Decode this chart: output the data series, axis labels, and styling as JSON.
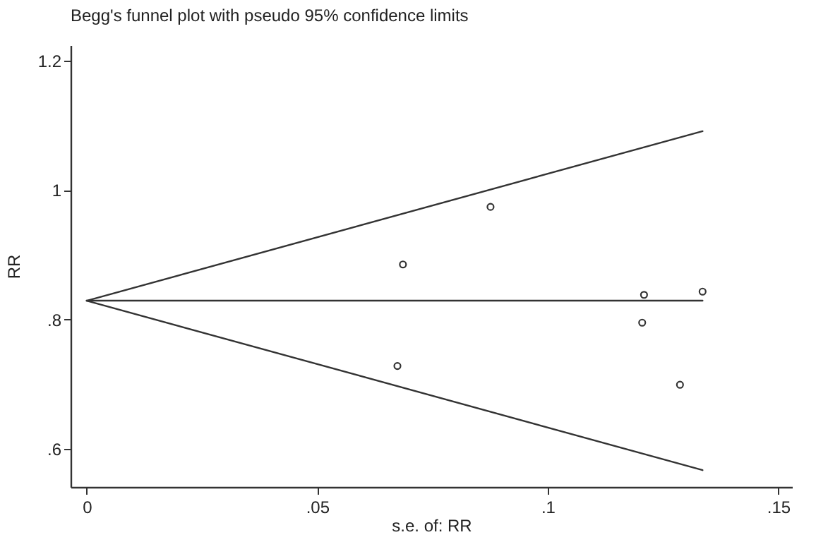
{
  "chart_data": {
    "type": "line",
    "title": "Begg's funnel plot with pseudo 95% confidence limits",
    "xlabel": "s.e. of: RR",
    "ylabel": "RR",
    "xlim": [
      -0.0035,
      0.153
    ],
    "ylim": [
      0.541,
      1.224
    ],
    "xticks": [
      0,
      {
        "value": 0.05,
        "label": ".05"
      },
      {
        "value": 0.1,
        "label": ".1"
      },
      {
        "value": 0.15,
        "label": ".15"
      }
    ],
    "yticks": [
      {
        "value": 0.6,
        "label": ".6"
      },
      {
        "value": 0.8,
        "label": ".8"
      },
      1,
      1.2
    ],
    "grid": false,
    "series": [
      {
        "color": "#333333",
        "x": [
          0,
          0.1336
        ],
        "values": [
          0.829,
          1.091
        ]
      },
      {
        "color": "#333333",
        "x": [
          0,
          0.1336
        ],
        "values": [
          0.829,
          0.829
        ]
      },
      {
        "color": "#333333",
        "x": [
          0,
          0.1336
        ],
        "values": [
          0.829,
          0.567
        ]
      },
      {
        "type": "scatter",
        "color": "#333333",
        "marker": "circle",
        "x": [
          0.0686,
          0.0674,
          0.0876,
          0.1209,
          0.1205,
          0.1336,
          0.1287
        ],
        "values": [
          0.885,
          0.728,
          0.974,
          0.838,
          0.795,
          0.843,
          0.699
        ]
      }
    ]
  }
}
